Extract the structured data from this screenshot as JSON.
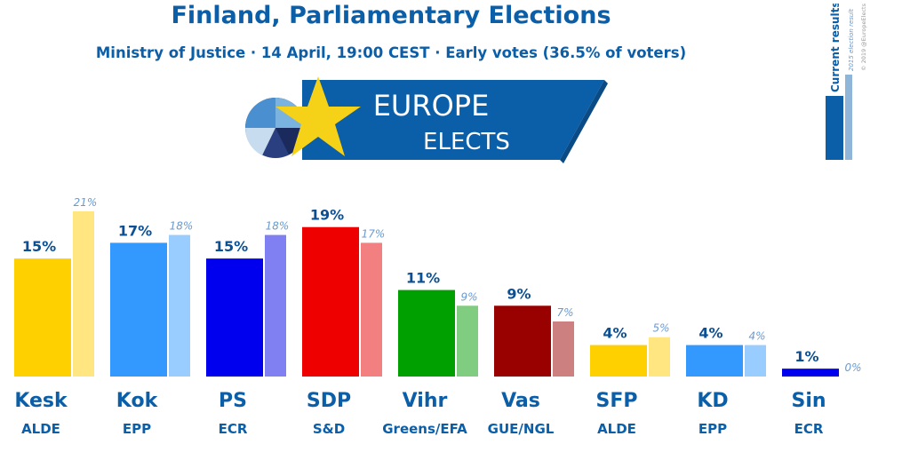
{
  "header": {
    "title": "Finland, Parliamentary Elections",
    "subtitle": "Ministry of Justice · 14 April, 19:00 CEST · Early votes (36.5% of voters)"
  },
  "logo": {
    "line1": "EUROPE",
    "line2": "ELECTS"
  },
  "legend": {
    "current": "Current results",
    "previous": "2015 election result",
    "credit": "© 2019 @EuropeElects"
  },
  "colors": {
    "title": "#0b5ea8",
    "banner": "#0b5ea8",
    "star": "#f5d117"
  },
  "chart_data": {
    "type": "bar",
    "categories": [
      "Kesk",
      "Kok",
      "PS",
      "SDP",
      "Vihr",
      "Vas",
      "SFP",
      "KD",
      "Sin"
    ],
    "groups": [
      "ALDE",
      "EPP",
      "ECR",
      "S&D",
      "Greens/EFA",
      "GUE/NGL",
      "ALDE",
      "EPP",
      "ECR"
    ],
    "series": [
      {
        "name": "Current results",
        "values": [
          15,
          17,
          15,
          19,
          11,
          9,
          4,
          4,
          1
        ],
        "labels": [
          "15%",
          "17%",
          "15%",
          "19%",
          "11%",
          "9%",
          "4%",
          "4%",
          "1%"
        ],
        "colors": [
          "#ffd000",
          "#3399ff",
          "#0000ee",
          "#ee0000",
          "#00a000",
          "#990000",
          "#ffd000",
          "#3399ff",
          "#0000ee"
        ]
      },
      {
        "name": "2015 election result",
        "values": [
          21,
          18,
          18,
          17,
          9,
          7,
          5,
          4,
          0
        ],
        "labels": [
          "21%",
          "18%",
          "18%",
          "17%",
          "9%",
          "7%",
          "5%",
          "4%",
          "0%"
        ],
        "colors": [
          "#ffe680",
          "#99ccff",
          "#8080f2",
          "#f28080",
          "#80cc80",
          "#cc8080",
          "#ffe680",
          "#99ccff",
          "#8080f2"
        ]
      }
    ],
    "ylim": [
      0,
      21
    ],
    "legend_position": "top-right"
  }
}
